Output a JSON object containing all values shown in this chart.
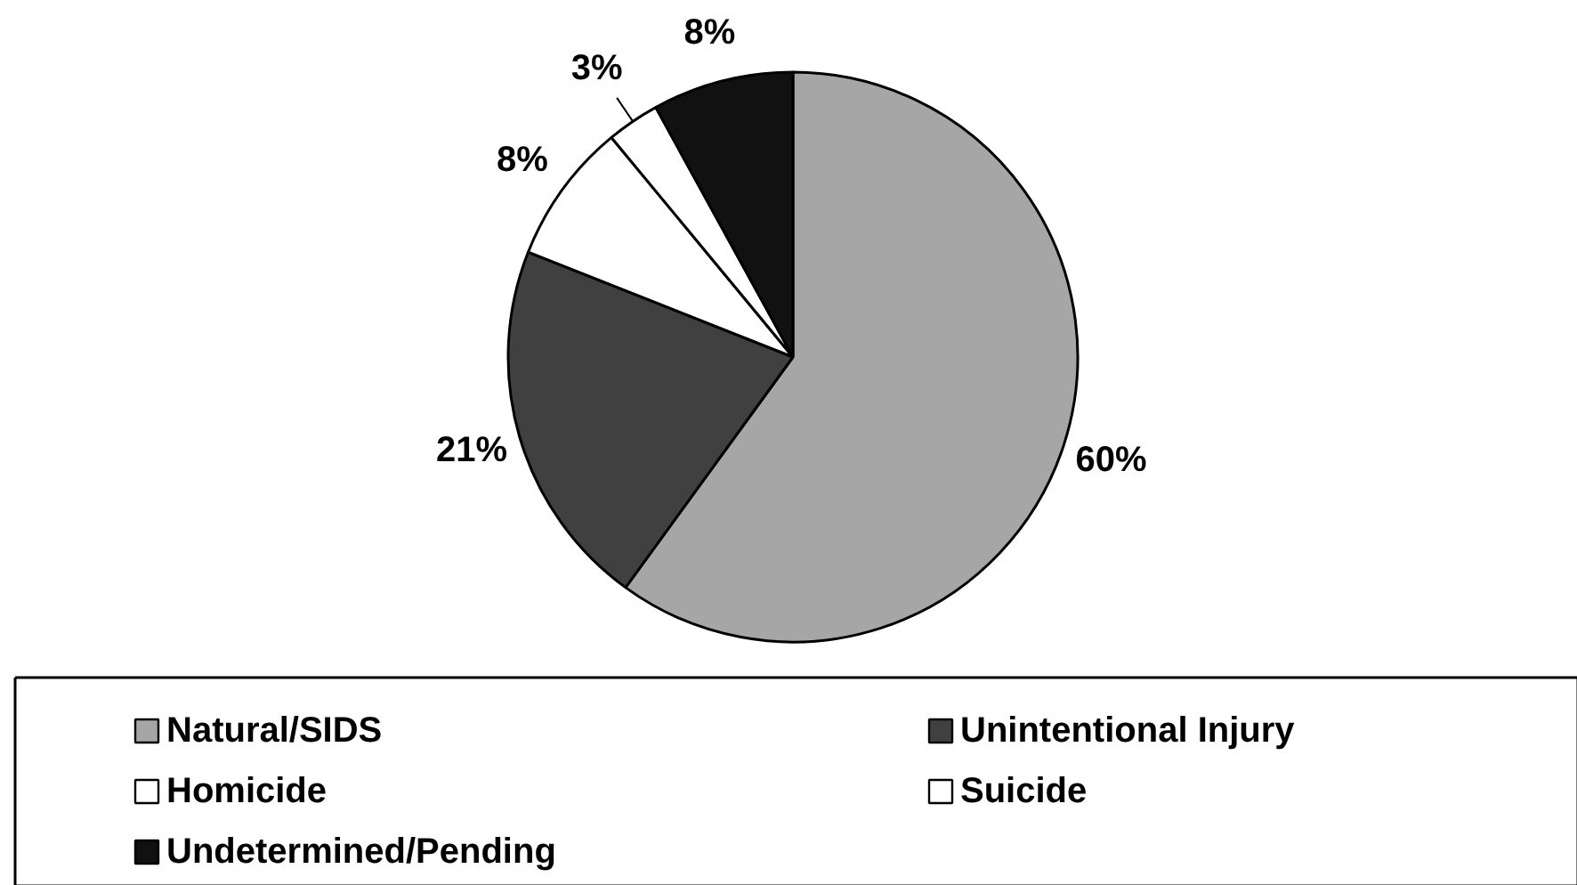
{
  "chart_data": {
    "type": "pie",
    "categories": [
      "Natural/SIDS",
      "Unintentional Injury",
      "Homicide",
      "Suicide",
      "Undetermined/Pending"
    ],
    "values": [
      60,
      21,
      8,
      3,
      8
    ],
    "colors": [
      "#a6a6a6",
      "#404040",
      "#ffffff",
      "#ffffff",
      "#111111"
    ],
    "value_labels": [
      "60%",
      "21%",
      "8%",
      "3%",
      "8%"
    ],
    "legend": "bottom"
  }
}
